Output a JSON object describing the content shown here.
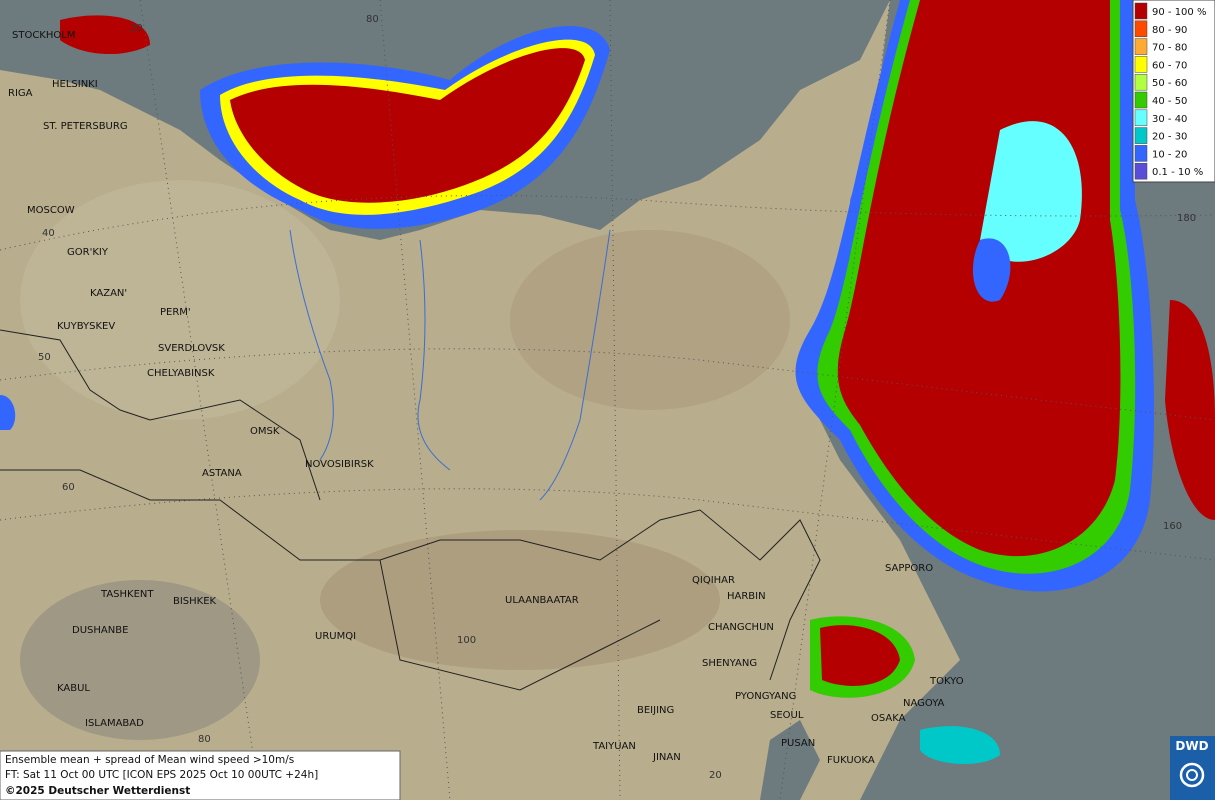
{
  "legend": {
    "items": [
      {
        "label": "90 - 100 %",
        "color": "#b40000"
      },
      {
        "label": "80 - 90",
        "color": "#ff4a00"
      },
      {
        "label": "70 - 80",
        "color": "#ffaa33"
      },
      {
        "label": "60 - 70",
        "color": "#ffff00"
      },
      {
        "label": "50 - 60",
        "color": "#b0ff40"
      },
      {
        "label": "40 - 50",
        "color": "#33cc00"
      },
      {
        "label": "30 - 40",
        "color": "#66ffff"
      },
      {
        "label": "20 - 30",
        "color": "#00c8c8"
      },
      {
        "label": "10 - 20",
        "color": "#3366ff"
      },
      {
        "label": "0.1 - 10 %",
        "color": "#5a4ed8"
      }
    ]
  },
  "cities": [
    "STOCKHOLM",
    "HELSINKI",
    "RIGA",
    "ST. PETERSBURG",
    "MOSCOW",
    "GOR'KIY",
    "KAZAN'",
    "PERM'",
    "KUYBYSKEV",
    "SVERDLOVSK",
    "CHELYABINSK",
    "OMSK",
    "NOVOSIBIRSK",
    "ASTANA",
    "TASHKENT",
    "BISHKEK",
    "DUSHANBE",
    "URUMQI",
    "KABUL",
    "ISLAMABAD",
    "ULAANBAATAR",
    "QIQIHAR",
    "HARBIN",
    "CHANGCHUN",
    "SHENYANG",
    "PYONGYANG",
    "SEOUL",
    "BEIJING",
    "TAIYUAN",
    "JINAN",
    "PUSAN",
    "FUKUOKA",
    "OSAKA",
    "NAGOYA",
    "TOKYO",
    "SAPPORO"
  ],
  "grid_labels": [
    "20",
    "80",
    "40",
    "50",
    "60",
    "100",
    "80",
    "20",
    "180",
    "160"
  ],
  "info": {
    "lines": [
      "Ensemble mean + spread of Mean wind speed >10m/s",
      "FT: Sat 11 Oct 00 UTC [ICON EPS 2025 Oct 10 00UTC +24h]"
    ],
    "copyright": "©2025 Deutscher Wetterdienst"
  },
  "logo": "DWD"
}
